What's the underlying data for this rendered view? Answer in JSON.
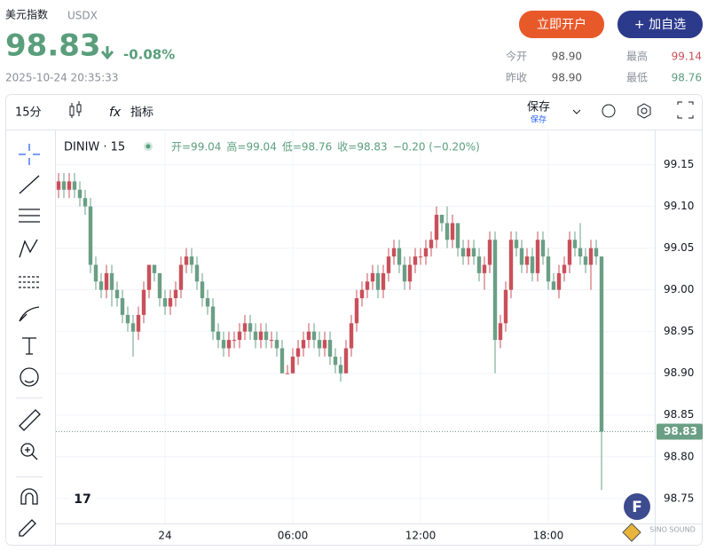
{
  "header": {
    "name": "美元指数",
    "code": "USDX",
    "price": "98.83",
    "change": "-0.08%",
    "time": "2025-10-24 20:35:33",
    "buttons": [
      "立即开户",
      "+ 加自选"
    ],
    "stats": [
      [
        "今开",
        "98.90"
      ],
      [
        "最高",
        "99.14"
      ],
      [
        "昨收",
        "98.90"
      ],
      [
        "最低",
        "98.76"
      ]
    ]
  },
  "toolbar": {
    "interval": "15分",
    "indicators": "指标",
    "save": "保存",
    "save_sub": "保存"
  },
  "watermark": "SINO SOUND",
  "chart_data": {
    "type": "candlestick",
    "symbol": "DINIW · 15",
    "legend": [
      "开=99.04",
      "高=99.04",
      "低=98.76",
      "收=98.83",
      "−0.20 (−0.20%)"
    ],
    "up_color": "#c9505a",
    "down_color": "#6a9f85",
    "grid": true,
    "xlim": [
      -0.5,
      112
    ],
    "xticks": [
      {
        "value": 20,
        "label": "24"
      },
      {
        "value": 44,
        "label": "06:00"
      },
      {
        "value": 68,
        "label": "12:00"
      },
      {
        "value": 92,
        "label": "18:00"
      }
    ],
    "ylim": [
      98.72,
      99.19
    ],
    "yticks": [
      99.15,
      {
        "value": 99.1,
        "label": "99.10"
      },
      99.05,
      {
        "value": 99,
        "label": "99.00"
      },
      98.95,
      {
        "value": 98.9,
        "label": "98.90"
      },
      98.85,
      {
        "value": 98.8,
        "label": "98.80"
      },
      98.75
    ],
    "candles": [
      [
        99.12,
        99.14,
        99.11,
        99.13
      ],
      [
        99.13,
        99.14,
        99.11,
        99.12
      ],
      [
        99.12,
        99.14,
        99.11,
        99.13
      ],
      [
        99.13,
        99.14,
        99.11,
        99.12
      ],
      [
        99.12,
        99.13,
        99.1,
        99.11
      ],
      [
        99.11,
        99.12,
        99.09,
        99.1
      ],
      [
        99.1,
        99.11,
        99.02,
        99.03
      ],
      [
        99.03,
        99.04,
        99.0,
        99.01
      ],
      [
        99.01,
        99.02,
        98.99,
        99.0
      ],
      [
        99.0,
        99.03,
        98.99,
        99.02
      ],
      [
        99.02,
        99.03,
        98.98,
        99.0
      ],
      [
        99.0,
        99.01,
        98.98,
        98.99
      ],
      [
        98.99,
        99.0,
        98.96,
        98.97
      ],
      [
        98.97,
        98.98,
        98.95,
        98.96
      ],
      [
        98.96,
        98.97,
        98.92,
        98.95
      ],
      [
        98.95,
        98.98,
        98.94,
        98.97
      ],
      [
        98.97,
        99.01,
        98.96,
        99.0
      ],
      [
        99.0,
        99.03,
        98.99,
        99.03
      ],
      [
        99.03,
        99.03,
        99.01,
        99.02
      ],
      [
        99.02,
        99.02,
        98.98,
        98.99
      ],
      [
        98.99,
        99.0,
        98.97,
        98.98
      ],
      [
        98.98,
        99.0,
        98.97,
        98.99
      ],
      [
        98.99,
        99.01,
        98.98,
        99.0
      ],
      [
        99.0,
        99.04,
        98.99,
        99.03
      ],
      [
        99.03,
        99.05,
        99.02,
        99.04
      ],
      [
        99.04,
        99.05,
        99.02,
        99.03
      ],
      [
        99.03,
        99.04,
        99.0,
        99.01
      ],
      [
        99.01,
        99.02,
        98.98,
        98.99
      ],
      [
        98.99,
        99.0,
        98.97,
        98.98
      ],
      [
        98.98,
        98.99,
        98.94,
        98.95
      ],
      [
        98.95,
        98.96,
        98.93,
        98.94
      ],
      [
        98.94,
        98.95,
        98.92,
        98.93
      ],
      [
        98.93,
        98.95,
        98.92,
        98.94
      ],
      [
        98.94,
        98.95,
        98.93,
        98.94
      ],
      [
        98.94,
        98.96,
        98.93,
        98.95
      ],
      [
        98.95,
        98.97,
        98.94,
        98.96
      ],
      [
        98.96,
        98.97,
        98.94,
        98.95
      ],
      [
        98.95,
        98.96,
        98.93,
        98.94
      ],
      [
        98.94,
        98.96,
        98.93,
        98.95
      ],
      [
        98.95,
        98.96,
        98.93,
        98.94
      ],
      [
        98.94,
        98.95,
        98.93,
        98.94
      ],
      [
        98.94,
        98.95,
        98.92,
        98.93
      ],
      [
        98.93,
        98.94,
        98.9,
        98.9
      ],
      [
        98.9,
        98.91,
        98.9,
        98.9
      ],
      [
        98.9,
        98.93,
        98.9,
        98.92
      ],
      [
        98.92,
        98.94,
        98.91,
        98.93
      ],
      [
        98.93,
        98.95,
        98.92,
        98.94
      ],
      [
        98.94,
        98.96,
        98.93,
        98.95
      ],
      [
        98.95,
        98.96,
        98.93,
        98.94
      ],
      [
        98.94,
        98.95,
        98.92,
        98.93
      ],
      [
        98.93,
        98.95,
        98.92,
        98.94
      ],
      [
        98.94,
        98.95,
        98.91,
        98.92
      ],
      [
        98.92,
        98.93,
        98.9,
        98.91
      ],
      [
        98.91,
        98.92,
        98.89,
        98.9
      ],
      [
        98.9,
        98.94,
        98.9,
        98.93
      ],
      [
        98.93,
        98.97,
        98.92,
        98.96
      ],
      [
        98.96,
        99.0,
        98.95,
        98.99
      ],
      [
        98.99,
        99.01,
        98.98,
        99.0
      ],
      [
        99.0,
        99.02,
        98.99,
        99.01
      ],
      [
        99.01,
        99.03,
        99.0,
        99.02
      ],
      [
        99.02,
        99.03,
        98.99,
        99.0
      ],
      [
        99.0,
        99.03,
        98.99,
        99.02
      ],
      [
        99.02,
        99.05,
        99.01,
        99.04
      ],
      [
        99.04,
        99.06,
        99.03,
        99.05
      ],
      [
        99.05,
        99.06,
        99.02,
        99.03
      ],
      [
        99.03,
        99.04,
        99.0,
        99.01
      ],
      [
        99.01,
        99.04,
        99.0,
        99.03
      ],
      [
        99.03,
        99.05,
        99.02,
        99.04
      ],
      [
        99.04,
        99.05,
        99.03,
        99.04
      ],
      [
        99.04,
        99.06,
        99.03,
        99.05
      ],
      [
        99.05,
        99.07,
        99.04,
        99.06
      ],
      [
        99.06,
        99.1,
        99.05,
        99.09
      ],
      [
        99.09,
        99.09,
        99.07,
        99.08
      ],
      [
        99.08,
        99.1,
        99.05,
        99.06
      ],
      [
        99.06,
        99.09,
        99.05,
        99.08
      ],
      [
        99.08,
        99.08,
        99.04,
        99.05
      ],
      [
        99.05,
        99.06,
        99.03,
        99.04
      ],
      [
        99.04,
        99.06,
        99.03,
        99.05
      ],
      [
        99.05,
        99.06,
        99.03,
        99.04
      ],
      [
        99.04,
        99.05,
        99.01,
        99.02
      ],
      [
        99.02,
        99.04,
        99.0,
        99.03
      ],
      [
        99.03,
        99.07,
        99.02,
        99.06
      ],
      [
        99.06,
        99.07,
        98.9,
        98.94
      ],
      [
        98.94,
        98.97,
        98.93,
        98.96
      ],
      [
        98.96,
        99.01,
        98.95,
        99.0
      ],
      [
        99.0,
        99.07,
        98.99,
        99.06
      ],
      [
        99.06,
        99.07,
        99.04,
        99.05
      ],
      [
        99.05,
        99.06,
        99.02,
        99.03
      ],
      [
        99.03,
        99.05,
        99.02,
        99.04
      ],
      [
        99.04,
        99.05,
        99.01,
        99.02
      ],
      [
        99.02,
        99.07,
        99.01,
        99.06
      ],
      [
        99.06,
        99.07,
        99.03,
        99.04
      ],
      [
        99.04,
        99.05,
        99.0,
        99.01
      ],
      [
        99.01,
        99.02,
        99.0,
        99.0
      ],
      [
        99.0,
        99.03,
        98.99,
        99.02
      ],
      [
        99.02,
        99.04,
        99.01,
        99.03
      ],
      [
        99.03,
        99.07,
        99.02,
        99.06
      ],
      [
        99.06,
        99.07,
        99.04,
        99.05
      ],
      [
        99.05,
        99.08,
        99.03,
        99.04
      ],
      [
        99.04,
        99.05,
        99.02,
        99.03
      ],
      [
        99.03,
        99.06,
        99.0,
        99.05
      ],
      [
        99.05,
        99.06,
        99.03,
        99.04
      ],
      [
        99.04,
        99.04,
        98.76,
        98.83
      ]
    ]
  }
}
